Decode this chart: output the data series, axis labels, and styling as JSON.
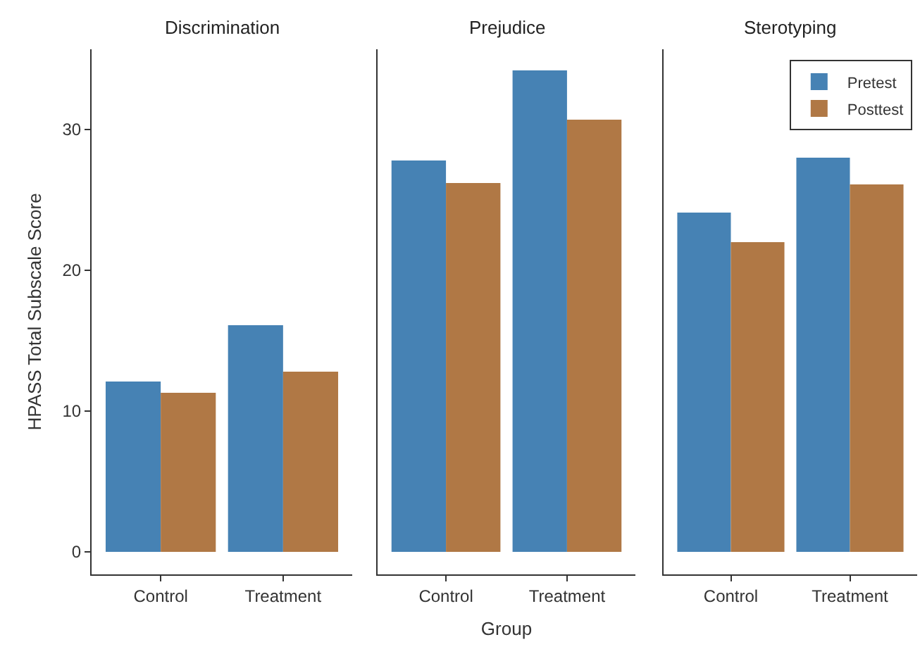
{
  "chart_data": [
    {
      "type": "bar",
      "title": "Discrimination",
      "ylabel": "HPASS Total Subscale Score",
      "categories": [
        "Control",
        "Treatment"
      ],
      "ylim": [
        -1.6,
        35.7
      ],
      "yticks": [
        0,
        10,
        20,
        30
      ],
      "series": [
        {
          "color": "#4682b4",
          "values": [
            12.1,
            16.1
          ]
        },
        {
          "color": "#b07845",
          "values": [
            11.3,
            12.8
          ]
        }
      ]
    },
    {
      "type": "bar",
      "title": "Prejudice",
      "xlabel": "Group",
      "categories": [
        "Control",
        "Treatment"
      ],
      "ylim": [
        -1.6,
        35.7
      ],
      "yticks": [
        0,
        10,
        20,
        30
      ],
      "tick_labels": "x",
      "series": [
        {
          "color": "#4682b4",
          "values": [
            27.8,
            34.2
          ]
        },
        {
          "color": "#b07845",
          "values": [
            26.2,
            30.7
          ]
        }
      ]
    },
    {
      "type": "bar",
      "title": "Sterotyping",
      "categories": [
        "Control",
        "Treatment"
      ],
      "ylim": [
        -1.6,
        35.7
      ],
      "yticks": [
        0,
        10,
        20,
        30
      ],
      "tick_labels": "x",
      "legend": "top right",
      "series": [
        {
          "name": "Pretest",
          "color": "#4682b4",
          "values": [
            24.1,
            28.0
          ]
        },
        {
          "name": "Posttest",
          "color": "#b07845",
          "values": [
            22.0,
            26.1
          ]
        }
      ]
    }
  ]
}
